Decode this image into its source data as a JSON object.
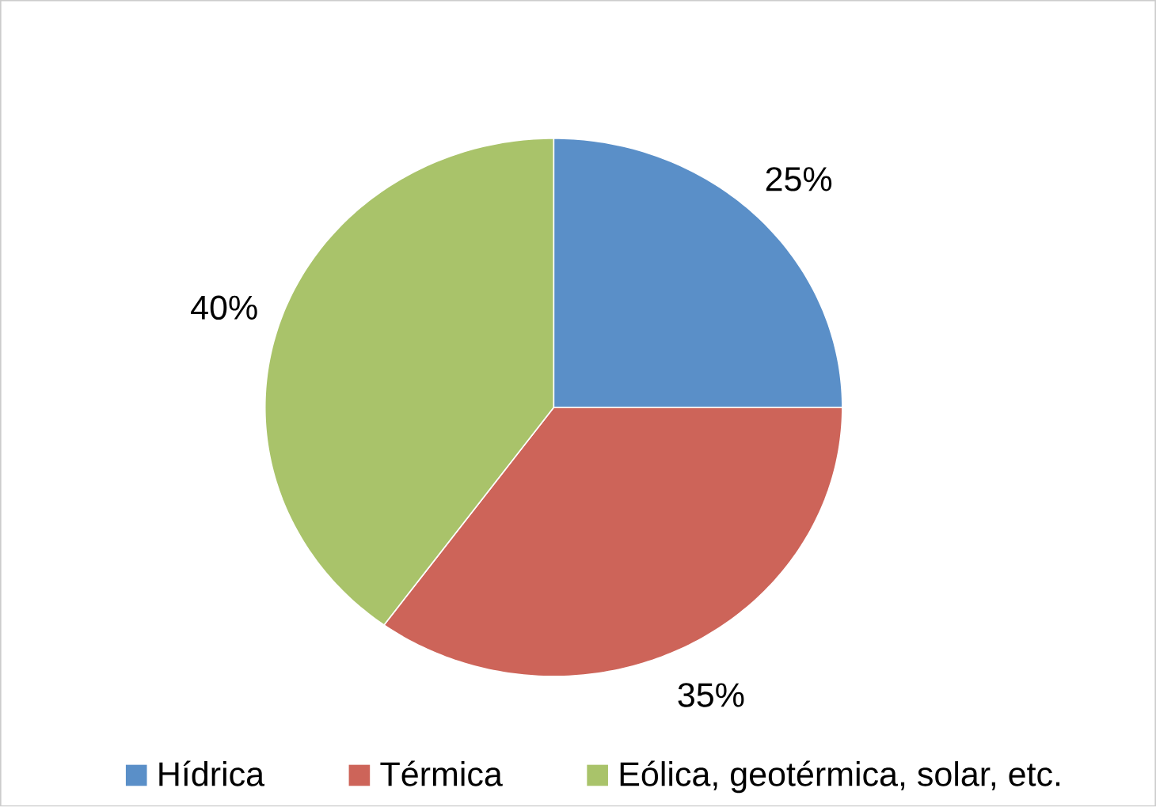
{
  "chart_data": {
    "type": "pie",
    "categories": [
      "Hídrica",
      "Térmica",
      "Eólica, geotérmica, solar, etc."
    ],
    "values": [
      25,
      35,
      40
    ],
    "value_labels": [
      "25%",
      "35%",
      "40%"
    ],
    "colors": [
      "#5a8fc8",
      "#cd6459",
      "#a9c36a"
    ],
    "legend": "bottom"
  }
}
